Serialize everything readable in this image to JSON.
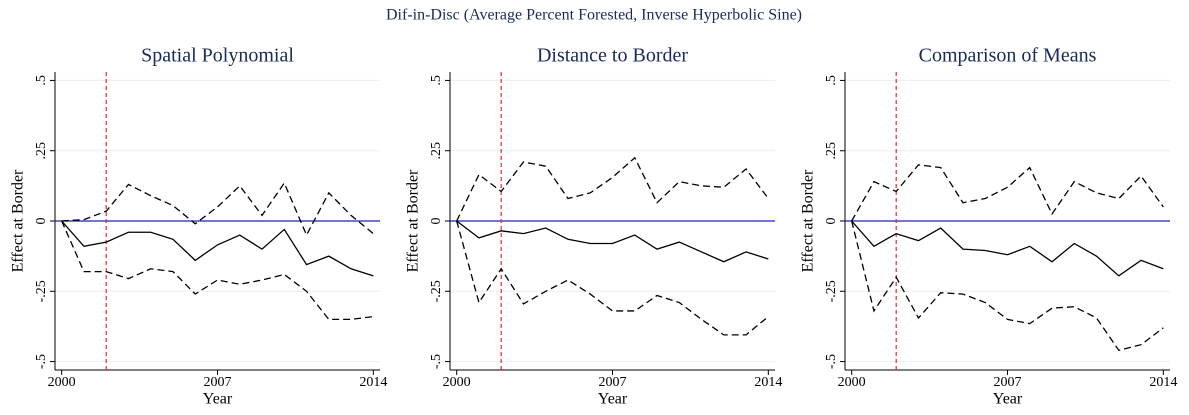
{
  "title": "Dif-in-Disc (Average Percent Forested, Inverse Hyperbolic Sine)",
  "chart_data": [
    {
      "type": "line",
      "title": "Spatial Polynomial",
      "xlabel": "Year",
      "ylabel": "Effect at Border",
      "x": [
        2000,
        2001,
        2002,
        2003,
        2004,
        2005,
        2006,
        2007,
        2008,
        2009,
        2010,
        2011,
        2012,
        2013,
        2014
      ],
      "series": [
        {
          "color": "#000000",
          "style": "solid",
          "values": [
            0,
            -0.09,
            -0.075,
            -0.04,
            -0.04,
            -0.065,
            -0.14,
            -0.085,
            -0.05,
            -0.1,
            -0.03,
            -0.155,
            -0.125,
            -0.17,
            -0.195
          ]
        },
        {
          "color": "#000000",
          "style": "dashed",
          "values": [
            0,
            0.005,
            0.035,
            0.13,
            0.09,
            0.055,
            -0.01,
            0.05,
            0.125,
            0.02,
            0.135,
            -0.05,
            0.1,
            0.02,
            -0.045
          ]
        },
        {
          "color": "#000000",
          "style": "dashed",
          "values": [
            0,
            -0.18,
            -0.18,
            -0.205,
            -0.17,
            -0.18,
            -0.26,
            -0.21,
            -0.225,
            -0.21,
            -0.19,
            -0.25,
            -0.35,
            -0.35,
            -0.34
          ]
        }
      ],
      "vline": 2002,
      "vline_color": "#e8262b",
      "hline": 0,
      "hline_color": "#1f1fbf",
      "xlim": [
        1999.7,
        2014.3
      ],
      "xticks": [
        2000,
        2007,
        2014
      ],
      "ylim": [
        -0.53,
        0.53
      ],
      "yticks": [
        {
          "value": -0.5,
          "label": "-.5"
        },
        {
          "value": -0.25,
          "label": "-.25"
        },
        0,
        {
          "value": 0.25,
          "label": ".25"
        },
        {
          "value": 0.5,
          "label": ".5"
        }
      ],
      "grid": true
    },
    {
      "type": "line",
      "title": "Distance to Border",
      "xlabel": "Year",
      "ylabel": "Effect at Border",
      "x": [
        2000,
        2001,
        2002,
        2003,
        2004,
        2005,
        2006,
        2007,
        2008,
        2009,
        2010,
        2011,
        2012,
        2013,
        2014
      ],
      "series": [
        {
          "color": "#000000",
          "style": "solid",
          "values": [
            0,
            -0.06,
            -0.035,
            -0.045,
            -0.025,
            -0.065,
            -0.08,
            -0.08,
            -0.05,
            -0.1,
            -0.075,
            -0.11,
            -0.145,
            -0.11,
            -0.135
          ]
        },
        {
          "color": "#000000",
          "style": "dashed",
          "values": [
            0,
            0.165,
            0.105,
            0.21,
            0.195,
            0.08,
            0.1,
            0.155,
            0.225,
            0.065,
            0.14,
            0.125,
            0.12,
            0.185,
            0.08
          ]
        },
        {
          "color": "#000000",
          "style": "dashed",
          "values": [
            0,
            -0.29,
            -0.17,
            -0.295,
            -0.25,
            -0.21,
            -0.26,
            -0.32,
            -0.32,
            -0.265,
            -0.29,
            -0.35,
            -0.405,
            -0.405,
            -0.34
          ]
        }
      ],
      "vline": 2002,
      "vline_color": "#e8262b",
      "hline": 0,
      "hline_color": "#1f1fbf",
      "xlim": [
        1999.7,
        2014.3
      ],
      "xticks": [
        2000,
        2007,
        2014
      ],
      "ylim": [
        -0.53,
        0.53
      ],
      "yticks": [
        {
          "value": -0.5,
          "label": "-.5"
        },
        {
          "value": -0.25,
          "label": "-.25"
        },
        0,
        {
          "value": 0.25,
          "label": ".25"
        },
        {
          "value": 0.5,
          "label": ".5"
        }
      ],
      "grid": true
    },
    {
      "type": "line",
      "title": "Comparison of Means",
      "xlabel": "Year",
      "ylabel": "Effect at Border",
      "x": [
        2000,
        2001,
        2002,
        2003,
        2004,
        2005,
        2006,
        2007,
        2008,
        2009,
        2010,
        2011,
        2012,
        2013,
        2014
      ],
      "series": [
        {
          "color": "#000000",
          "style": "solid",
          "values": [
            0,
            -0.09,
            -0.045,
            -0.07,
            -0.025,
            -0.1,
            -0.105,
            -0.12,
            -0.09,
            -0.145,
            -0.08,
            -0.125,
            -0.195,
            -0.14,
            -0.17
          ]
        },
        {
          "color": "#000000",
          "style": "dashed",
          "values": [
            0,
            0.14,
            0.105,
            0.2,
            0.19,
            0.065,
            0.08,
            0.12,
            0.19,
            0.025,
            0.14,
            0.1,
            0.08,
            0.16,
            0.05
          ]
        },
        {
          "color": "#000000",
          "style": "dashed",
          "values": [
            0,
            -0.32,
            -0.2,
            -0.345,
            -0.255,
            -0.26,
            -0.29,
            -0.35,
            -0.365,
            -0.31,
            -0.305,
            -0.345,
            -0.46,
            -0.44,
            -0.38
          ]
        }
      ],
      "vline": 2002,
      "vline_color": "#e8262b",
      "hline": 0,
      "hline_color": "#1f1fbf",
      "xlim": [
        1999.7,
        2014.3
      ],
      "xticks": [
        2000,
        2007,
        2014
      ],
      "ylim": [
        -0.53,
        0.53
      ],
      "yticks": [
        {
          "value": -0.5,
          "label": "-.5"
        },
        {
          "value": -0.25,
          "label": "-.25"
        },
        0,
        {
          "value": 0.25,
          "label": ".25"
        },
        {
          "value": 0.5,
          "label": ".5"
        }
      ],
      "grid": true
    }
  ]
}
